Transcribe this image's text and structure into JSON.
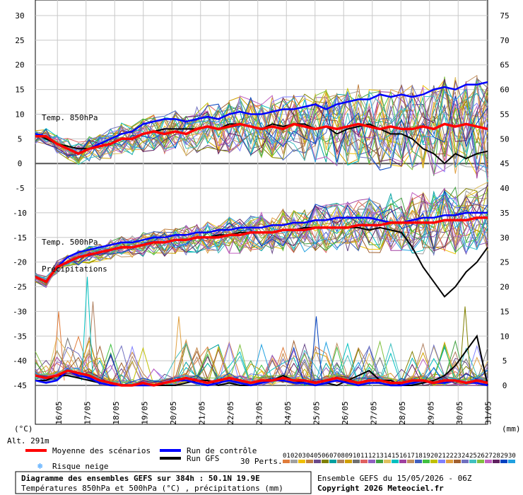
{
  "chart_data": {
    "type": "line",
    "x": [
      "16/05",
      "17/05",
      "18/05",
      "19/05",
      "20/05",
      "21/05",
      "22/05",
      "23/05",
      "24/05",
      "25/05",
      "26/05",
      "27/05",
      "28/05",
      "29/05",
      "30/05",
      "31/05"
    ],
    "left_axis": {
      "unit": "(°C)",
      "range": [
        -45,
        30
      ],
      "ticks": [
        30,
        25,
        20,
        15,
        10,
        5,
        0,
        -5,
        -10,
        -15,
        -20,
        -25,
        -30,
        -35,
        -40,
        -45
      ]
    },
    "right_axis": {
      "unit": "(mm)",
      "range": [
        0,
        75
      ],
      "ticks": [
        75,
        70,
        65,
        60,
        55,
        50,
        45,
        40,
        35,
        30,
        25,
        20,
        15,
        10,
        5,
        0
      ]
    },
    "panels": {
      "t850": {
        "label": "Temp. 850hPa",
        "mean": [
          5.5,
          5.5,
          4,
          3,
          2,
          3,
          3.5,
          4,
          5,
          5,
          6,
          6.5,
          6,
          6.5,
          6,
          7,
          7.5,
          7,
          7.5,
          8,
          7.5,
          7,
          7.5,
          7,
          8,
          7.5,
          7,
          7.5,
          7,
          7.5,
          8,
          7.5,
          7,
          7.5,
          7,
          7,
          7.5,
          7,
          8,
          7.5,
          8,
          7.5,
          7
        ],
        "control": [
          6,
          5.5,
          4,
          3,
          2,
          3,
          4,
          5,
          6,
          6.5,
          8,
          8.5,
          9,
          9,
          8.5,
          9,
          9.5,
          9,
          10,
          10.5,
          10,
          10,
          10.5,
          11,
          11,
          11.5,
          12,
          11,
          12,
          12.5,
          13,
          13,
          14,
          13.5,
          14,
          13.5,
          14,
          15,
          15.5,
          15,
          16,
          16,
          16.5
        ],
        "gfs": [
          6,
          5,
          4,
          3.5,
          3,
          3,
          3.5,
          4,
          5,
          5,
          6,
          6.5,
          7,
          7,
          7,
          7,
          7.5,
          7,
          8,
          8,
          7.5,
          7,
          8,
          7.5,
          8,
          8,
          7,
          7.5,
          6,
          7,
          7.5,
          8,
          7,
          6,
          6,
          5,
          3,
          2,
          0,
          2,
          1,
          2,
          2.5
        ]
      },
      "t500": {
        "label": "Temp. 500hPa",
        "mean": [
          -23,
          -24,
          -21,
          -20,
          -19,
          -18.5,
          -18,
          -17.5,
          -17,
          -17,
          -16.5,
          -16,
          -16,
          -15.5,
          -15.5,
          -15,
          -15,
          -15,
          -14.5,
          -14.5,
          -14,
          -14,
          -14,
          -13.5,
          -13.5,
          -13.5,
          -13,
          -13,
          -13,
          -13,
          -12.5,
          -12.5,
          -12.5,
          -12,
          -12,
          -12,
          -12,
          -12,
          -11.5,
          -11.5,
          -11.5,
          -11,
          -11
        ],
        "control": [
          -23,
          -24,
          -21,
          -19,
          -18,
          -17.5,
          -17,
          -16.5,
          -16,
          -16,
          -15.5,
          -15,
          -15,
          -14.5,
          -14.5,
          -14,
          -14,
          -13.5,
          -13.5,
          -13,
          -13,
          -13,
          -12.5,
          -12.5,
          -12,
          -12,
          -11.5,
          -11.5,
          -11,
          -11,
          -11,
          -11,
          -11.5,
          -12,
          -12,
          -11.5,
          -11,
          -11,
          -10.5,
          -10.5,
          -10,
          -10,
          -10
        ],
        "gfs": [
          -23,
          -24,
          -21,
          -20,
          -19,
          -18.5,
          -18,
          -17.5,
          -17,
          -17,
          -16.5,
          -16,
          -16,
          -15.5,
          -15.5,
          -15,
          -15,
          -14.5,
          -14.5,
          -14,
          -14,
          -14,
          -14,
          -13.5,
          -13.5,
          -13,
          -13,
          -13,
          -13,
          -13,
          -13,
          -13.5,
          -13,
          -13.5,
          -14,
          -17,
          -21,
          -24,
          -27,
          -25,
          -22,
          -20,
          -17
        ]
      },
      "precip": {
        "label": "Précipitations",
        "mean": [
          2,
          1.5,
          2,
          3,
          2.5,
          2,
          1,
          0.5,
          0,
          0,
          0.5,
          0,
          0.5,
          1,
          1.5,
          1,
          0.5,
          1,
          1.5,
          1,
          0.5,
          1,
          1,
          1.5,
          1,
          1,
          0.5,
          1,
          1.5,
          1,
          0.5,
          1,
          1,
          0.5,
          0.5,
          1,
          1,
          0.5,
          1,
          1,
          0.5,
          1,
          0.5
        ],
        "control": [
          1,
          0.5,
          1,
          3,
          2,
          1.5,
          0.5,
          0,
          0,
          0,
          0,
          0,
          0.5,
          1,
          1,
          0.5,
          0,
          0.5,
          1,
          0.5,
          0,
          0.5,
          1,
          1,
          0.5,
          0.5,
          0,
          0.5,
          1,
          0.5,
          0,
          0.5,
          0.5,
          0,
          0,
          0.5,
          1,
          0.5,
          0.5,
          1,
          0.5,
          0.5,
          0
        ],
        "gfs": [
          1,
          1,
          2,
          2,
          1.5,
          1,
          0.5,
          0,
          0,
          0,
          0,
          0,
          0,
          0,
          0.5,
          1,
          1,
          0,
          0.5,
          0,
          0,
          0.5,
          1,
          2,
          1,
          0.5,
          0,
          0.5,
          0,
          1,
          2,
          3,
          1,
          1,
          0,
          0,
          0.5,
          1,
          2,
          4,
          7,
          10,
          0
        ]
      }
    },
    "peaks": [
      {
        "x": "16/05",
        "v": 15
      },
      {
        "x": "17/05",
        "v": 17
      },
      {
        "x": "17/05",
        "v": 22
      },
      {
        "x": "20/05",
        "v": 14
      },
      {
        "x": "25/05",
        "v": 14
      },
      {
        "x": "30/05",
        "v": 16
      }
    ],
    "legend": {
      "mean": "Moyenne des scénarios",
      "control": "Run de contrôle",
      "gfs": "Run GFS",
      "perts": "30 Perts.",
      "snow": "Risque neige",
      "mean_color": "#ff0000",
      "control_color": "#0000ff",
      "gfs_color": "#000000"
    },
    "perts_numbers": [
      "01",
      "02",
      "03",
      "04",
      "05",
      "06",
      "07",
      "08",
      "09",
      "10",
      "11",
      "12",
      "13",
      "14",
      "15",
      "16",
      "17",
      "18",
      "19",
      "20",
      "21",
      "22",
      "23",
      "24",
      "25",
      "26",
      "27",
      "28",
      "29",
      "30"
    ],
    "perts_colors": [
      "#e07c3a",
      "#a0a0a0",
      "#f0c000",
      "#c08040",
      "#6a4a8a",
      "#808000",
      "#00a0a0",
      "#b08060",
      "#d0a000",
      "#707070",
      "#e06060",
      "#9060c0",
      "#40a040",
      "#e0c060",
      "#00c0c0",
      "#a040a0",
      "#c09060",
      "#4060c0",
      "#40c040",
      "#c0c000",
      "#8080ff",
      "#e0a040",
      "#a06030",
      "#7070c0",
      "#40c0c0",
      "#80c040",
      "#c060c0",
      "#602060",
      "#0040c0",
      "#20a0e0"
    ]
  },
  "footer": {
    "alt": "Alt. 291m",
    "title": "Diagramme des ensembles GEFS sur 384h : 50.1N 19.9E",
    "subtitle": "Températures 850hPa et 500hPa (°C) , précipitations (mm)",
    "run": "Ensemble GEFS du 15/05/2026 - 06Z",
    "copyright": "Copyright 2026 Meteociel.fr"
  }
}
